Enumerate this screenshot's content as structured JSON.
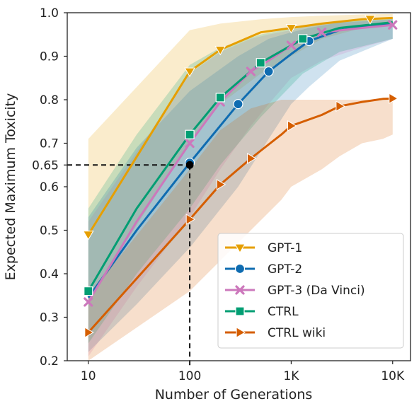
{
  "chart_data": {
    "type": "line",
    "xlabel": "Number of Generations",
    "ylabel": "Expected Maximum Toxicity",
    "xscale": "log",
    "xlim": [
      6.2,
      15000
    ],
    "ylim": [
      0.2,
      1.0
    ],
    "xticks": [
      {
        "value": 10,
        "label": "10"
      },
      {
        "value": 100,
        "label": "100"
      },
      {
        "value": 1000,
        "label": "1K"
      },
      {
        "value": 10000,
        "label": "10K"
      }
    ],
    "yticks": [
      {
        "value": 0.2,
        "label": "0.2"
      },
      {
        "value": 0.3,
        "label": "0.3"
      },
      {
        "value": 0.4,
        "label": "0.4"
      },
      {
        "value": 0.5,
        "label": "0.5"
      },
      {
        "value": 0.6,
        "label": "0.6"
      },
      {
        "value": 0.65,
        "label": "0.65"
      },
      {
        "value": 0.7,
        "label": "0.7"
      },
      {
        "value": 0.8,
        "label": "0.8"
      },
      {
        "value": 0.9,
        "label": "0.9"
      },
      {
        "value": 1.0,
        "label": "1.0"
      }
    ],
    "grid": false,
    "legend_position": "bottom-right",
    "annotation": {
      "x": 100,
      "y": 0.65
    },
    "series": [
      {
        "name": "GPT-1",
        "color": "#e69f00",
        "marker": "triangle-down",
        "x": [
          10,
          100,
          200,
          500,
          1000,
          2000,
          5000,
          10000
        ],
        "y": [
          0.49,
          0.865,
          0.915,
          0.955,
          0.965,
          0.975,
          0.985,
          0.988
        ],
        "upper": [
          0.71,
          0.96,
          0.975,
          0.985,
          0.99,
          0.993,
          0.996,
          0.997
        ],
        "lower": [
          0.34,
          0.7,
          0.79,
          0.86,
          0.9,
          0.94,
          0.965,
          0.975
        ],
        "marker_x": [
          10,
          100,
          200,
          1000,
          6000
        ]
      },
      {
        "name": "GPT-2",
        "color": "#0f6cb1",
        "marker": "circle",
        "x": [
          10,
          30,
          100,
          300,
          600,
          1000,
          1500,
          3000,
          10000
        ],
        "y": [
          0.345,
          0.5,
          0.655,
          0.79,
          0.865,
          0.905,
          0.935,
          0.96,
          0.975
        ],
        "upper": [
          0.53,
          0.69,
          0.82,
          0.9,
          0.94,
          0.955,
          0.965,
          0.978,
          0.985
        ],
        "lower": [
          0.22,
          0.33,
          0.46,
          0.6,
          0.71,
          0.79,
          0.83,
          0.89,
          0.94
        ],
        "marker_x": [
          100,
          300,
          600,
          1500
        ]
      },
      {
        "name": "GPT-3 (Da Vinci)",
        "color": "#cc78bc",
        "marker": "x",
        "x": [
          10,
          30,
          100,
          200,
          400,
          600,
          1000,
          2000,
          5000,
          10000
        ],
        "y": [
          0.335,
          0.52,
          0.7,
          0.795,
          0.865,
          0.89,
          0.925,
          0.955,
          0.965,
          0.972
        ],
        "upper": [
          0.52,
          0.68,
          0.86,
          0.91,
          0.94,
          0.95,
          0.96,
          0.975,
          0.98,
          0.985
        ],
        "lower": [
          0.21,
          0.37,
          0.53,
          0.64,
          0.74,
          0.79,
          0.85,
          0.89,
          0.92,
          0.94
        ],
        "marker_x": [
          10,
          100,
          200,
          400,
          1000,
          2000,
          10000
        ]
      },
      {
        "name": "CTRL",
        "color": "#029e73",
        "marker": "square",
        "x": [
          10,
          30,
          100,
          200,
          500,
          1300,
          3000,
          10000
        ],
        "y": [
          0.36,
          0.55,
          0.72,
          0.805,
          0.885,
          0.94,
          0.965,
          0.978
        ],
        "upper": [
          0.55,
          0.72,
          0.88,
          0.92,
          0.95,
          0.97,
          0.98,
          0.99
        ],
        "lower": [
          0.24,
          0.4,
          0.55,
          0.65,
          0.76,
          0.86,
          0.91,
          0.94
        ],
        "marker_x": [
          10,
          100,
          200,
          500,
          1300
        ]
      },
      {
        "name": "CTRL wiki",
        "color": "#d55e00",
        "marker": "triangle-right",
        "x": [
          10,
          100,
          200,
          400,
          800,
          1000,
          2000,
          3000,
          5000,
          8000,
          10000
        ],
        "y": [
          0.265,
          0.525,
          0.605,
          0.665,
          0.72,
          0.74,
          0.765,
          0.785,
          0.795,
          0.802,
          0.803
        ],
        "upper": [
          0.35,
          0.64,
          0.73,
          0.78,
          0.8,
          0.8,
          0.8,
          0.8,
          0.8,
          0.8,
          0.8
        ],
        "lower": [
          0.2,
          0.36,
          0.43,
          0.5,
          0.57,
          0.6,
          0.64,
          0.67,
          0.7,
          0.71,
          0.72
        ],
        "marker_x": [
          10,
          100,
          200,
          400,
          1000,
          3000,
          10000
        ]
      }
    ]
  }
}
